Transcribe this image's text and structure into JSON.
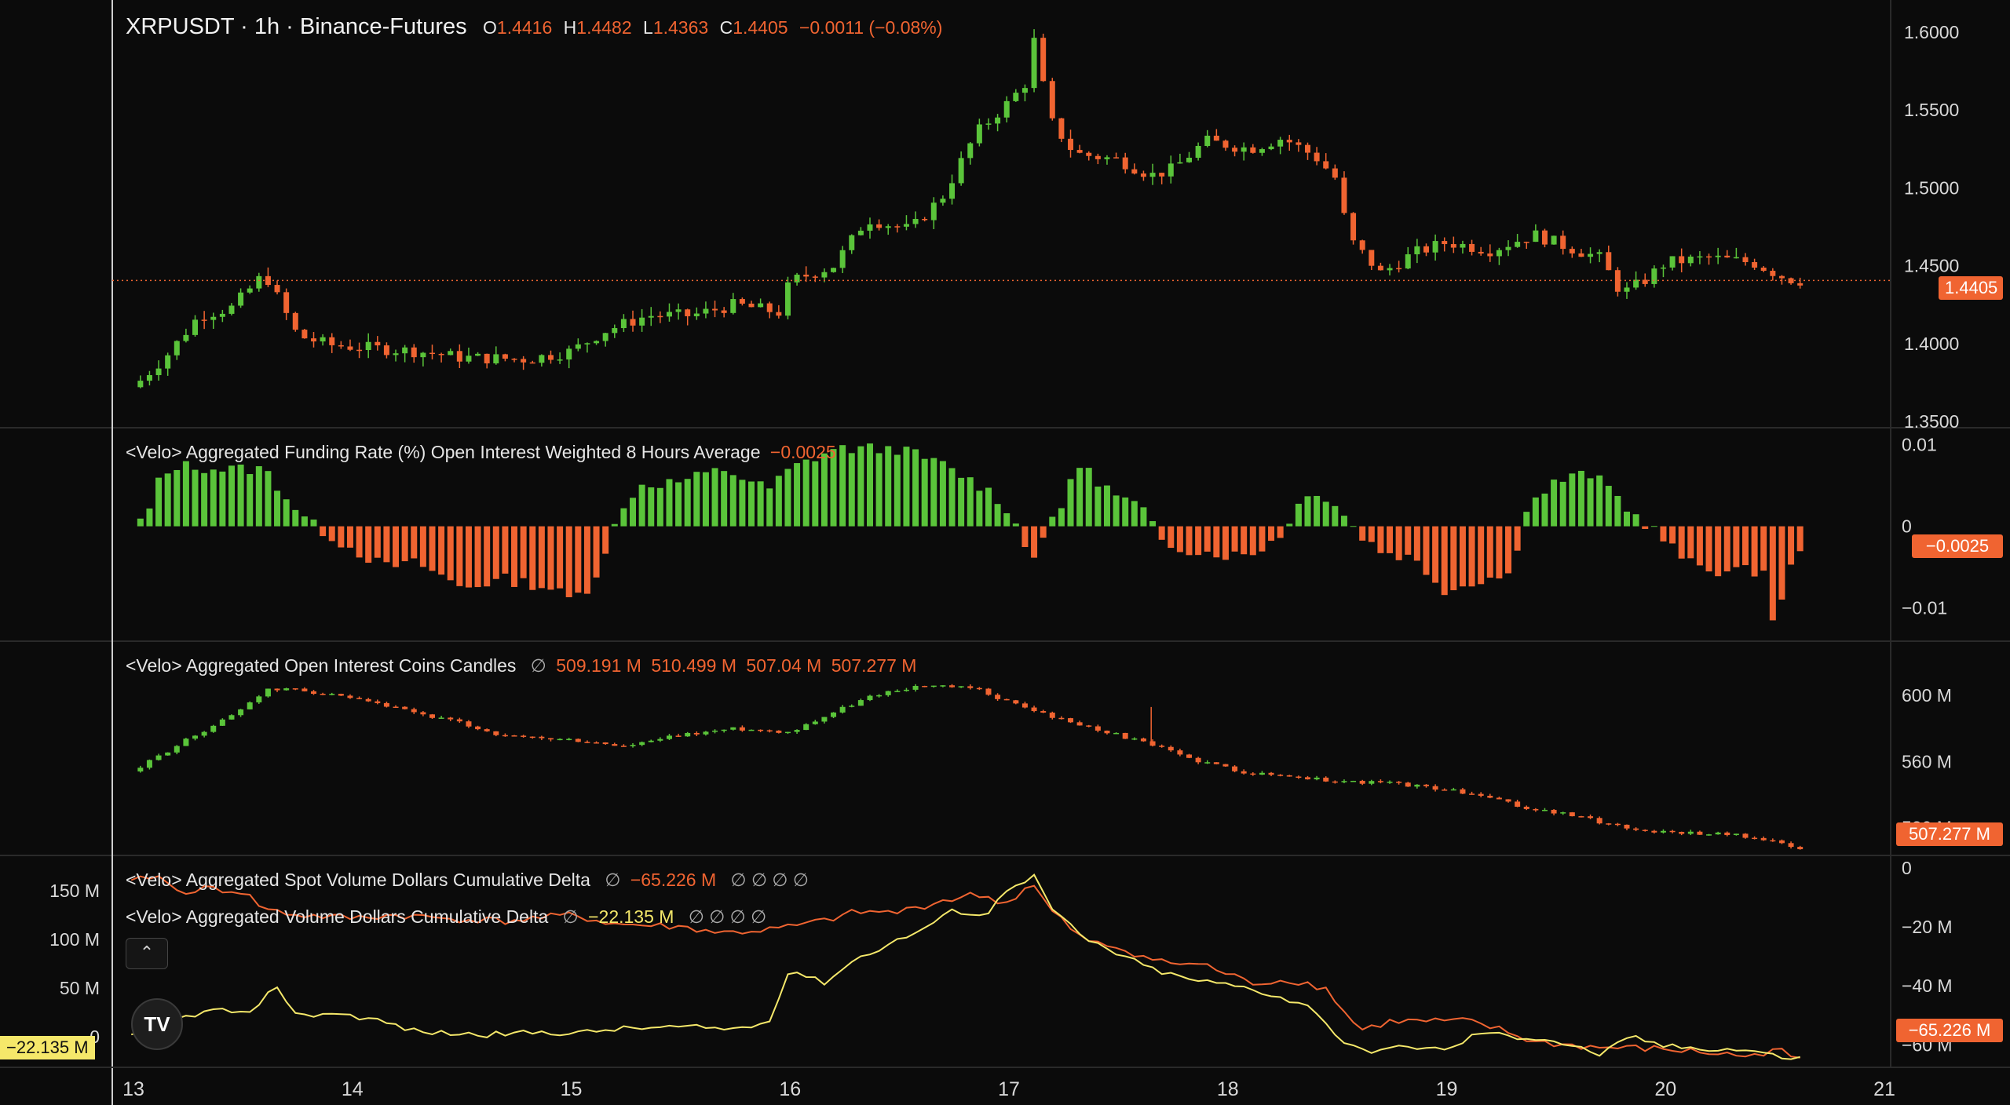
{
  "header": {
    "title": "XRPUSDT · 1h · Binance-Futures",
    "o_label": "O",
    "o": "1.4416",
    "h_label": "H",
    "h": "1.4482",
    "l_label": "L",
    "l": "1.4363",
    "c_label": "C",
    "c": "1.4405",
    "change": "−0.0011 (−0.08%)"
  },
  "panes": {
    "funding": {
      "title": "<Velo> Aggregated Funding Rate (%) Open Interest Weighted 8 Hours Average",
      "value": "−0.0025"
    },
    "oi": {
      "title": "<Velo> Aggregated Open Interest Coins Candles",
      "null_icon": "∅",
      "o": "509.191 M",
      "h": "510.499 M",
      "l": "507.04 M",
      "c": "507.277 M"
    },
    "spot_cvd": {
      "title": "<Velo> Aggregated Spot Volume Dollars Cumulative Delta",
      "value": "−65.226 M",
      "null_icon": "∅",
      "null_icons": "∅ ∅ ∅ ∅"
    },
    "cvd": {
      "title": "<Velo> Aggregated Volume Dollars Cumulative Delta",
      "value": "−22.135 M",
      "null_icon": "∅",
      "null_icons": "∅ ∅ ∅ ∅"
    }
  },
  "tags": {
    "price": "1.4405",
    "funding": "−0.0025",
    "oi": "507.277 M",
    "spot_cvd": "−65.226 M",
    "cvd": "−22.135 M"
  },
  "controls": {
    "collapse_icon": "chevron-up-icon",
    "collapse_glyph": "⌃",
    "logo_icon": "tradingview-logo-icon",
    "logo_text": "TV"
  },
  "colors": {
    "up": "#5ac43a",
    "down": "#f06431",
    "yellow": "#f5e86a",
    "background": "#0b0b0b"
  },
  "chart_data": [
    {
      "type": "candlestick",
      "title": "XRPUSDT · 1h · Binance-Futures",
      "x_ticks": [
        "13",
        "14",
        "15",
        "16",
        "17",
        "18",
        "19",
        "20",
        "21"
      ],
      "y_ticks": [
        "1.3500",
        "1.4000",
        "1.4500",
        "1.5000",
        "1.5500",
        "1.6000"
      ],
      "ylim": [
        1.35,
        1.615
      ],
      "last": 1.4405,
      "path_close": [
        [
          13.0,
          1.372
        ],
        [
          13.15,
          1.392
        ],
        [
          13.3,
          1.418
        ],
        [
          13.45,
          1.423
        ],
        [
          13.6,
          1.445
        ],
        [
          13.75,
          1.405
        ],
        [
          13.9,
          1.399
        ],
        [
          14.1,
          1.397
        ],
        [
          14.3,
          1.395
        ],
        [
          14.5,
          1.391
        ],
        [
          14.8,
          1.39
        ],
        [
          15.0,
          1.395
        ],
        [
          15.15,
          1.408
        ],
        [
          15.35,
          1.418
        ],
        [
          15.55,
          1.418
        ],
        [
          15.75,
          1.425
        ],
        [
          15.95,
          1.42
        ],
        [
          16.0,
          1.44
        ],
        [
          16.2,
          1.45
        ],
        [
          16.35,
          1.48
        ],
        [
          16.55,
          1.473
        ],
        [
          16.7,
          1.495
        ],
        [
          16.85,
          1.535
        ],
        [
          17.0,
          1.555
        ],
        [
          17.08,
          1.568
        ],
        [
          17.12,
          1.598
        ],
        [
          17.18,
          1.545
        ],
        [
          17.3,
          1.522
        ],
        [
          17.5,
          1.518
        ],
        [
          17.65,
          1.508
        ],
        [
          17.75,
          1.512
        ],
        [
          17.9,
          1.53
        ],
        [
          18.1,
          1.525
        ],
        [
          18.25,
          1.532
        ],
        [
          18.4,
          1.52
        ],
        [
          18.5,
          1.505
        ],
        [
          18.55,
          1.468
        ],
        [
          18.7,
          1.445
        ],
        [
          18.85,
          1.458
        ],
        [
          19.0,
          1.465
        ],
        [
          19.2,
          1.46
        ],
        [
          19.4,
          1.47
        ],
        [
          19.55,
          1.462
        ],
        [
          19.7,
          1.455
        ],
        [
          19.8,
          1.432
        ],
        [
          19.9,
          1.44
        ],
        [
          20.0,
          1.452
        ],
        [
          20.2,
          1.455
        ],
        [
          20.4,
          1.452
        ],
        [
          20.55,
          1.442
        ],
        [
          20.6,
          1.4405
        ]
      ]
    },
    {
      "type": "bar",
      "title": "<Velo> Aggregated Funding Rate (%) Open Interest Weighted 8 Hours Average",
      "y_ticks": [
        "0.01",
        "0",
        "−0.01"
      ],
      "ylim": [
        -0.0135,
        0.0115
      ],
      "last": -0.0025,
      "path": [
        [
          13.0,
          0.0025
        ],
        [
          13.05,
          -0.0005
        ],
        [
          13.1,
          0.005
        ],
        [
          13.2,
          0.0075
        ],
        [
          13.4,
          0.007
        ],
        [
          13.6,
          0.007
        ],
        [
          13.7,
          0.0035
        ],
        [
          13.8,
          0.0005
        ],
        [
          13.95,
          -0.002
        ],
        [
          14.15,
          -0.005
        ],
        [
          14.3,
          -0.0045
        ],
        [
          14.5,
          -0.0075
        ],
        [
          14.7,
          -0.0065
        ],
        [
          14.9,
          -0.0075
        ],
        [
          15.0,
          -0.009
        ],
        [
          15.1,
          -0.007
        ],
        [
          15.18,
          -0.001
        ],
        [
          15.3,
          0.005
        ],
        [
          15.5,
          0.0055
        ],
        [
          15.7,
          0.007
        ],
        [
          15.9,
          0.0045
        ],
        [
          16.0,
          0.007
        ],
        [
          16.2,
          0.0095
        ],
        [
          16.5,
          0.0095
        ],
        [
          16.7,
          0.0075
        ],
        [
          16.9,
          0.0045
        ],
        [
          17.0,
          0.002
        ],
        [
          17.1,
          -0.004
        ],
        [
          17.15,
          -0.0015
        ],
        [
          17.25,
          0.0025
        ],
        [
          17.3,
          0.008
        ],
        [
          17.5,
          0.0035
        ],
        [
          17.6,
          0.0025
        ],
        [
          17.7,
          -0.002
        ],
        [
          17.85,
          -0.003
        ],
        [
          18.0,
          -0.0035
        ],
        [
          18.1,
          -0.0035
        ],
        [
          18.25,
          -0.001
        ],
        [
          18.3,
          0.002
        ],
        [
          18.4,
          0.0045
        ],
        [
          18.5,
          0.0025
        ],
        [
          18.6,
          -0.001
        ],
        [
          18.7,
          -0.003
        ],
        [
          18.85,
          -0.004
        ],
        [
          19.0,
          -0.008
        ],
        [
          19.15,
          -0.0065
        ],
        [
          19.3,
          -0.006
        ],
        [
          19.35,
          0.002
        ],
        [
          19.5,
          0.0055
        ],
        [
          19.65,
          0.0065
        ],
        [
          19.75,
          0.0045
        ],
        [
          19.85,
          0.0015
        ],
        [
          19.95,
          -0.0005
        ],
        [
          20.1,
          -0.0045
        ],
        [
          20.25,
          -0.0055
        ],
        [
          20.45,
          -0.0055
        ],
        [
          20.5,
          -0.0125
        ],
        [
          20.55,
          -0.0075
        ],
        [
          20.6,
          -0.0025
        ]
      ]
    },
    {
      "type": "candlestick",
      "title": "<Velo> Aggregated Open Interest Coins Candles",
      "y_ticks": [
        "600 M",
        "560 M",
        "520 M"
      ],
      "y_tick_values": [
        600,
        560,
        520
      ],
      "ylim": [
        506,
        630
      ],
      "last": 507.277,
      "path_close": [
        [
          13.0,
          554
        ],
        [
          13.2,
          570
        ],
        [
          13.45,
          588
        ],
        [
          13.6,
          603
        ],
        [
          13.75,
          604
        ],
        [
          14.1,
          595
        ],
        [
          14.5,
          583
        ],
        [
          14.7,
          575
        ],
        [
          15.0,
          573
        ],
        [
          15.25,
          569
        ],
        [
          15.5,
          576
        ],
        [
          15.75,
          580
        ],
        [
          16.0,
          578
        ],
        [
          16.2,
          590
        ],
        [
          16.4,
          601
        ],
        [
          16.6,
          606
        ],
        [
          16.85,
          604
        ],
        [
          17.0,
          596
        ],
        [
          17.25,
          585
        ],
        [
          17.45,
          578
        ],
        [
          17.65,
          570
        ],
        [
          17.85,
          561
        ],
        [
          18.1,
          553
        ],
        [
          18.3,
          551
        ],
        [
          18.5,
          548
        ],
        [
          18.75,
          547
        ],
        [
          19.0,
          543
        ],
        [
          19.2,
          538
        ],
        [
          19.35,
          532
        ],
        [
          19.55,
          528
        ],
        [
          19.75,
          522
        ],
        [
          19.9,
          518
        ],
        [
          20.1,
          517
        ],
        [
          20.3,
          516
        ],
        [
          20.45,
          513
        ],
        [
          20.6,
          507.277
        ]
      ],
      "wick": {
        "x": 17.65,
        "high": 593
      }
    },
    {
      "type": "line",
      "title": "<Velo> Aggregated Spot Volume Dollars Cumulative Delta / <Velo> Aggregated Volume Dollars Cumulative Delta",
      "y_ticks_left": [
        "150 M",
        "100 M",
        "50 M",
        "0"
      ],
      "y_ticks_right": [
        "0",
        "−20 M",
        "−40 M",
        "−60 M"
      ],
      "ylim_left": [
        -25,
        180
      ],
      "ylim_right": [
        -65.5,
        0
      ],
      "series": [
        {
          "name": "<Velo> Aggregated Spot Volume Dollars Cumulative Delta",
          "color": "#f06431",
          "axis": "right",
          "last": -65.226,
          "points": [
            [
              13.0,
              -5
            ],
            [
              13.1,
              -2
            ],
            [
              13.2,
              -8
            ],
            [
              13.35,
              -7
            ],
            [
              13.5,
              -8
            ],
            [
              13.6,
              -14
            ],
            [
              13.75,
              -16
            ],
            [
              14.0,
              -17
            ],
            [
              14.2,
              -16
            ],
            [
              14.4,
              -17
            ],
            [
              14.7,
              -18
            ],
            [
              15.0,
              -16
            ],
            [
              15.2,
              -19
            ],
            [
              15.5,
              -20
            ],
            [
              15.7,
              -22
            ],
            [
              15.9,
              -21
            ],
            [
              16.0,
              -20
            ],
            [
              16.15,
              -18
            ],
            [
              16.3,
              -15
            ],
            [
              16.5,
              -15
            ],
            [
              16.7,
              -11
            ],
            [
              16.85,
              -9
            ],
            [
              17.0,
              -12
            ],
            [
              17.1,
              -5
            ],
            [
              17.2,
              -15
            ],
            [
              17.35,
              -25
            ],
            [
              17.5,
              -27
            ],
            [
              17.7,
              -32
            ],
            [
              17.9,
              -33
            ],
            [
              18.1,
              -39
            ],
            [
              18.3,
              -38
            ],
            [
              18.45,
              -41
            ],
            [
              18.6,
              -55
            ],
            [
              18.75,
              -52
            ],
            [
              18.9,
              -52
            ],
            [
              19.1,
              -52
            ],
            [
              19.25,
              -55
            ],
            [
              19.4,
              -59
            ],
            [
              19.55,
              -60
            ],
            [
              19.7,
              -61
            ],
            [
              19.8,
              -61
            ],
            [
              20.0,
              -61.5
            ],
            [
              20.25,
              -63
            ],
            [
              20.4,
              -64
            ],
            [
              20.5,
              -61
            ],
            [
              20.6,
              -65.226
            ]
          ]
        },
        {
          "name": "<Velo> Aggregated Volume Dollars Cumulative Delta",
          "color": "#f5e86a",
          "axis": "left",
          "last": -22.135,
          "points": [
            [
              13.0,
              0
            ],
            [
              13.1,
              8
            ],
            [
              13.25,
              22
            ],
            [
              13.4,
              28
            ],
            [
              13.55,
              22
            ],
            [
              13.65,
              55
            ],
            [
              13.75,
              20
            ],
            [
              13.9,
              25
            ],
            [
              14.1,
              18
            ],
            [
              14.3,
              5
            ],
            [
              14.6,
              2
            ],
            [
              14.9,
              5
            ],
            [
              15.0,
              3
            ],
            [
              15.2,
              8
            ],
            [
              15.5,
              10
            ],
            [
              15.75,
              8
            ],
            [
              15.9,
              15
            ],
            [
              16.0,
              70
            ],
            [
              16.15,
              55
            ],
            [
              16.3,
              80
            ],
            [
              16.45,
              95
            ],
            [
              16.6,
              110
            ],
            [
              16.75,
              130
            ],
            [
              16.9,
              125
            ],
            [
              17.0,
              155
            ],
            [
              17.12,
              165
            ],
            [
              17.2,
              130
            ],
            [
              17.35,
              100
            ],
            [
              17.5,
              85
            ],
            [
              17.65,
              70
            ],
            [
              17.8,
              60
            ],
            [
              17.95,
              55
            ],
            [
              18.1,
              50
            ],
            [
              18.25,
              40
            ],
            [
              18.4,
              28
            ],
            [
              18.5,
              0
            ],
            [
              18.6,
              -15
            ],
            [
              18.75,
              -12
            ],
            [
              18.9,
              -10
            ],
            [
              19.0,
              -15
            ],
            [
              19.15,
              5
            ],
            [
              19.3,
              0
            ],
            [
              19.45,
              -2
            ],
            [
              19.55,
              -8
            ],
            [
              19.7,
              -18
            ],
            [
              19.85,
              0
            ],
            [
              20.0,
              -10
            ],
            [
              20.2,
              -12
            ],
            [
              20.4,
              -14
            ],
            [
              20.5,
              -20
            ],
            [
              20.6,
              -22.135
            ]
          ]
        }
      ]
    }
  ]
}
